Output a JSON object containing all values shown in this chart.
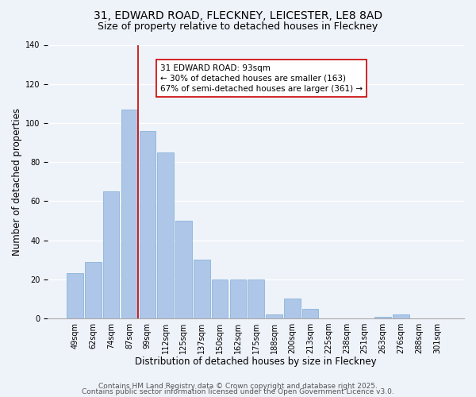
{
  "title1": "31, EDWARD ROAD, FLECKNEY, LEICESTER, LE8 8AD",
  "title2": "Size of property relative to detached houses in Fleckney",
  "xlabel": "Distribution of detached houses by size in Fleckney",
  "ylabel": "Number of detached properties",
  "bar_labels": [
    "49sqm",
    "62sqm",
    "74sqm",
    "87sqm",
    "99sqm",
    "112sqm",
    "125sqm",
    "137sqm",
    "150sqm",
    "162sqm",
    "175sqm",
    "188sqm",
    "200sqm",
    "213sqm",
    "225sqm",
    "238sqm",
    "251sqm",
    "263sqm",
    "276sqm",
    "288sqm",
    "301sqm"
  ],
  "bar_heights": [
    23,
    29,
    65,
    107,
    96,
    85,
    50,
    30,
    20,
    20,
    20,
    2,
    10,
    5,
    0,
    0,
    0,
    1,
    2,
    0,
    0
  ],
  "bar_color": "#aec6e8",
  "bar_edgecolor": "#7aaed4",
  "bar_linewidth": 0.5,
  "ylim": [
    0,
    140
  ],
  "yticks": [
    0,
    20,
    40,
    60,
    80,
    100,
    120,
    140
  ],
  "red_line_color": "#cc0000",
  "annotation_text": "31 EDWARD ROAD: 93sqm\n← 30% of detached houses are smaller (163)\n67% of semi-detached houses are larger (361) →",
  "annotation_box_facecolor": "#ffffff",
  "annotation_box_edgecolor": "#cc0000",
  "footer1": "Contains HM Land Registry data © Crown copyright and database right 2025.",
  "footer2": "Contains public sector information licensed under the Open Government Licence v3.0.",
  "background_color": "#eef2f9",
  "grid_color": "#ffffff",
  "title1_fontsize": 10,
  "title2_fontsize": 9,
  "xlabel_fontsize": 8.5,
  "ylabel_fontsize": 8.5,
  "tick_fontsize": 7,
  "annotation_fontsize": 7.5,
  "footer_fontsize": 6.5
}
